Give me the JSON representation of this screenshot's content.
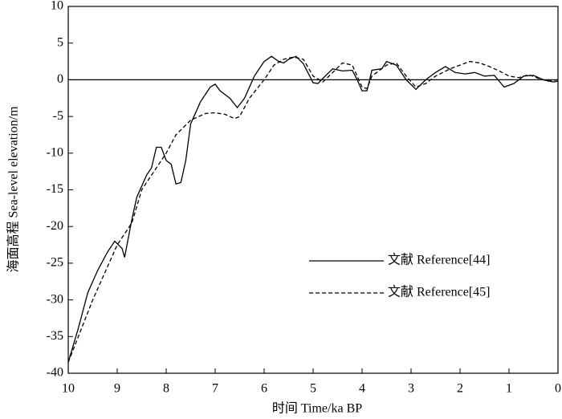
{
  "chart_data": {
    "type": "line",
    "x_label": "时间 Time/ka BP",
    "y_label": "海面高程 Sea-level elevation/m",
    "xlim": [
      10,
      0
    ],
    "xticks": [
      10,
      9,
      8,
      7,
      6,
      5,
      4,
      3,
      2,
      1,
      0
    ],
    "ylim": [
      -40,
      10
    ],
    "yticks": [
      10,
      5,
      0,
      -5,
      -10,
      -15,
      -20,
      -25,
      -30,
      -35,
      -40
    ],
    "zero_line": 0,
    "series": [
      {
        "name": "文献 Reference[44]",
        "color": "#000000",
        "dash": "solid",
        "x": [
          10,
          9.8,
          9.6,
          9.4,
          9.2,
          9.05,
          8.9,
          8.85,
          8.7,
          8.6,
          8.4,
          8.3,
          8.2,
          8.1,
          8.0,
          7.9,
          7.8,
          7.7,
          7.6,
          7.5,
          7.3,
          7.1,
          7.0,
          6.9,
          6.7,
          6.55,
          6.4,
          6.2,
          6.0,
          5.85,
          5.7,
          5.6,
          5.5,
          5.35,
          5.2,
          5.0,
          4.9,
          4.8,
          4.6,
          4.4,
          4.2,
          4.1,
          4.0,
          3.9,
          3.8,
          3.6,
          3.5,
          3.3,
          3.1,
          2.9,
          2.7,
          2.5,
          2.3,
          2.1,
          1.9,
          1.7,
          1.5,
          1.3,
          1.1,
          0.9,
          0.7,
          0.5,
          0.3,
          0.1,
          0
        ],
        "values": [
          -38.5,
          -34,
          -29,
          -26,
          -23.5,
          -22,
          -23,
          -24.2,
          -19,
          -16,
          -13,
          -12,
          -9.2,
          -9.2,
          -11,
          -11.5,
          -14.2,
          -14,
          -11,
          -6,
          -3,
          -1,
          -0.6,
          -1.5,
          -2.5,
          -3.8,
          -2.5,
          0.5,
          2.5,
          3.2,
          2.5,
          2.3,
          2.8,
          3.2,
          2.2,
          -0.4,
          -0.5,
          0.2,
          1.5,
          1.2,
          1.3,
          0,
          -1.5,
          -1.5,
          1.3,
          1.5,
          2.5,
          2,
          0,
          -1.3,
          0,
          1,
          1.8,
          1,
          0.8,
          1,
          0.5,
          0.6,
          -1,
          -0.5,
          0.5,
          0.6,
          0,
          -0.3,
          -0.2
        ]
      },
      {
        "name": "文献 Reference[45]",
        "color": "#000000",
        "dash": "dashed",
        "x": [
          10,
          9.5,
          9.0,
          8.7,
          8.5,
          8.2,
          8.0,
          7.8,
          7.5,
          7.2,
          7.0,
          6.8,
          6.6,
          6.5,
          6.3,
          6.0,
          5.8,
          5.6,
          5.4,
          5.2,
          5.0,
          4.8,
          4.6,
          4.4,
          4.2,
          4.0,
          3.9,
          3.8,
          3.6,
          3.5,
          3.3,
          3.1,
          2.9,
          2.7,
          2.5,
          2.2,
          2.0,
          1.8,
          1.6,
          1.4,
          1.2,
          1.0,
          0.8,
          0.6,
          0.4,
          0.2,
          0
        ],
        "values": [
          -38.5,
          -30,
          -22.5,
          -19.5,
          -15,
          -12,
          -10,
          -7.5,
          -5.5,
          -4.6,
          -4.5,
          -4.7,
          -5.3,
          -5,
          -2.5,
          0,
          2,
          2.8,
          3.1,
          2.8,
          0.5,
          -0.3,
          1,
          2.3,
          2,
          -1,
          -1.2,
          0.5,
          1.5,
          2,
          2.3,
          0.5,
          -1,
          -0.5,
          0.5,
          1.5,
          2,
          2.5,
          2.3,
          1.8,
          1.2,
          0.5,
          0.3,
          0.7,
          0.2,
          -0.2,
          0
        ]
      }
    ]
  }
}
